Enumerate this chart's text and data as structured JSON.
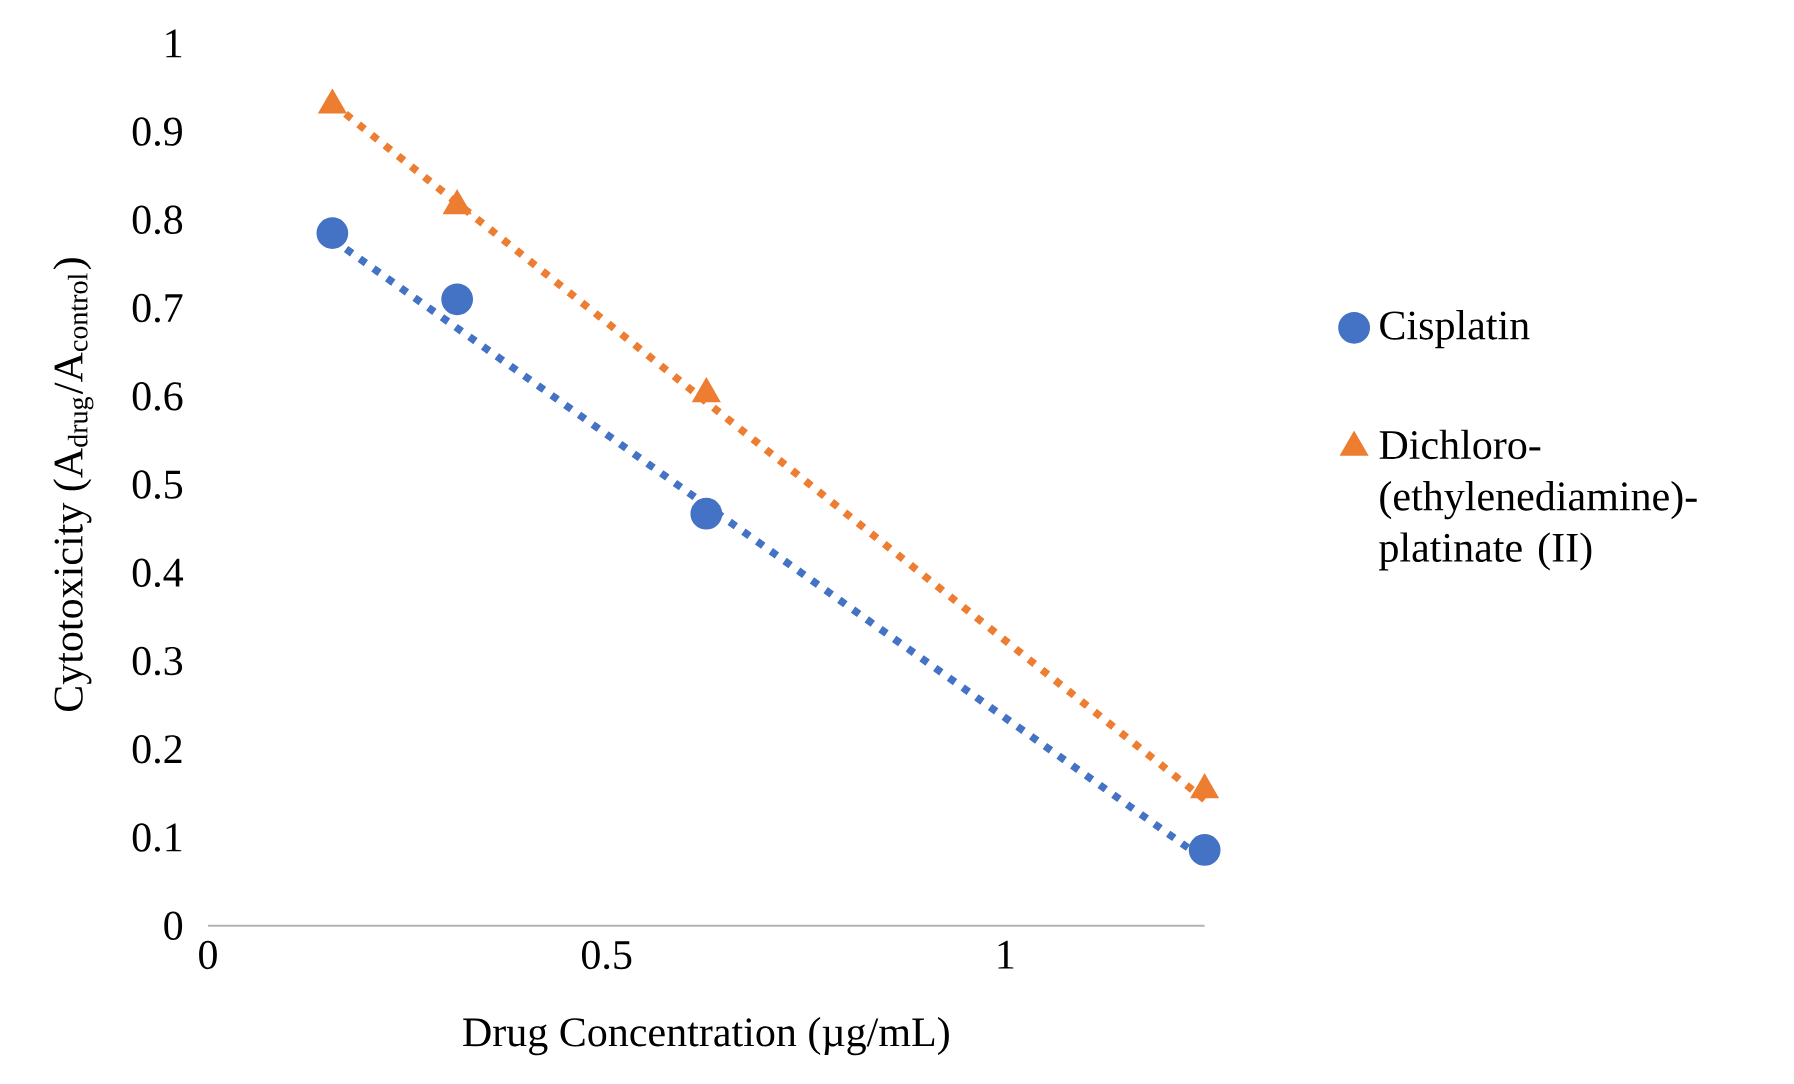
{
  "chart_data": {
    "type": "scatter",
    "xlabel": "Drug Concentration (µg/mL)",
    "ylabel": "Cytotoxicity (A$_{drug}$/A$_{control}$)",
    "xlim": [
      0,
      1.25
    ],
    "xticks": [
      0,
      0.5,
      1
    ],
    "ylim": [
      0,
      1
    ],
    "yticks": [
      0,
      0.1,
      0.2,
      0.3,
      0.4,
      0.5,
      0.6,
      0.7,
      0.8,
      0.9,
      1
    ],
    "grid": false,
    "legend": "right",
    "series": [
      {
        "name": "Cisplatin",
        "color": "#4472c4",
        "marker": "circle",
        "x": [
          0.156,
          0.3125,
          0.625,
          1.25
        ],
        "values": [
          0.785,
          0.71,
          0.467,
          0.086
        ]
      },
      {
        "name": "Dichloro-(ethylenediamine)-platinate (II)",
        "color": "#ed7d31",
        "marker": "triangle",
        "x": [
          0.156,
          0.3125,
          0.625,
          1.25
        ],
        "values": [
          0.93,
          0.816,
          0.603,
          0.154
        ]
      },
      {
        "type": "line",
        "color": "#4472c4",
        "line_style": "dotted",
        "x": [
          0.156,
          1.25
        ],
        "values": [
          0.778,
          0.075
        ]
      },
      {
        "type": "line",
        "color": "#ed7d31",
        "line_style": "dotted",
        "x": [
          0.156,
          1.25
        ],
        "values": [
          0.932,
          0.143
        ]
      }
    ]
  }
}
